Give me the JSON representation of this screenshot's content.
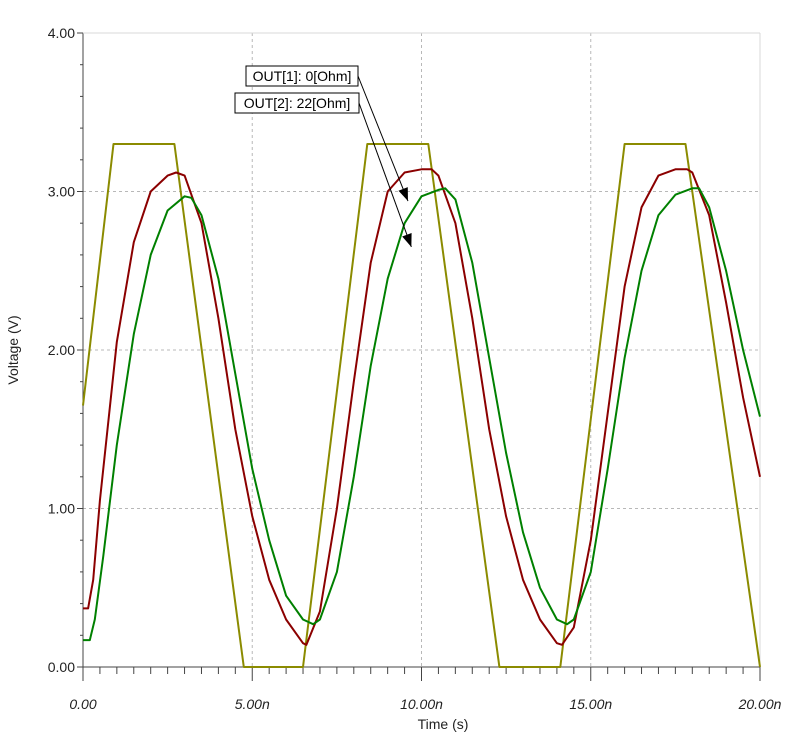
{
  "chart_data": {
    "type": "line",
    "xlabel": "Time (s)",
    "ylabel": "Voltage (V)",
    "xlim": [
      0,
      20
    ],
    "ylim": [
      0,
      4
    ],
    "grid": true,
    "x_ticks": [
      0,
      5,
      10,
      15,
      20
    ],
    "x_tick_labels": [
      "0.00",
      "5.00n",
      "10.00n",
      "15.00n",
      "20.00n"
    ],
    "y_ticks": [
      0,
      1,
      2,
      3,
      4
    ],
    "y_tick_labels": [
      "0.00",
      "1.00",
      "2.00",
      "3.00",
      "4.00"
    ],
    "series": [
      {
        "color": "#8b8b00",
        "x": [
          0,
          0.9,
          2.7,
          4.75,
          6.5,
          8.4,
          10.2,
          12.3,
          14.1,
          16.0,
          17.8,
          20.0
        ],
        "values": [
          1.65,
          3.3,
          3.3,
          0,
          0,
          3.3,
          3.3,
          0,
          0,
          3.3,
          3.3,
          0
        ]
      },
      {
        "color": "#8b0000",
        "x": [
          0,
          0.15,
          0.3,
          0.5,
          1.0,
          1.5,
          2.0,
          2.5,
          2.75,
          3.0,
          3.5,
          4.0,
          4.5,
          5.0,
          5.5,
          6.0,
          6.5,
          6.6,
          7.0,
          7.5,
          8.0,
          8.5,
          9.0,
          9.5,
          10.0,
          10.3,
          10.5,
          11.0,
          11.5,
          12.0,
          12.5,
          13.0,
          13.5,
          14.0,
          14.15,
          14.5,
          15.0,
          15.5,
          16.0,
          16.5,
          17.0,
          17.5,
          17.85,
          18.0,
          18.5,
          19.0,
          19.5,
          20.0
        ],
        "values": [
          0.37,
          0.37,
          0.55,
          1.05,
          2.05,
          2.68,
          3.0,
          3.1,
          3.12,
          3.1,
          2.8,
          2.2,
          1.5,
          0.95,
          0.55,
          0.3,
          0.15,
          0.14,
          0.35,
          1.0,
          1.8,
          2.55,
          3.0,
          3.12,
          3.14,
          3.14,
          3.1,
          2.8,
          2.2,
          1.5,
          0.95,
          0.55,
          0.3,
          0.15,
          0.14,
          0.25,
          0.8,
          1.6,
          2.4,
          2.9,
          3.1,
          3.14,
          3.14,
          3.12,
          2.85,
          2.3,
          1.7,
          1.2
        ]
      },
      {
        "color": "#008000",
        "x": [
          0,
          0.2,
          0.35,
          0.6,
          1.0,
          1.5,
          2.0,
          2.5,
          3.0,
          3.2,
          3.5,
          4.0,
          4.5,
          5.0,
          5.5,
          6.0,
          6.5,
          6.8,
          7.0,
          7.5,
          8.0,
          8.5,
          9.0,
          9.5,
          10.0,
          10.5,
          10.7,
          11.0,
          11.5,
          12.0,
          12.5,
          13.0,
          13.5,
          14.0,
          14.3,
          14.5,
          15.0,
          15.5,
          16.0,
          16.5,
          17.0,
          17.5,
          18.0,
          18.2,
          18.5,
          19.0,
          19.5,
          20.0
        ],
        "values": [
          0.17,
          0.17,
          0.3,
          0.7,
          1.4,
          2.1,
          2.6,
          2.88,
          2.97,
          2.96,
          2.85,
          2.45,
          1.85,
          1.25,
          0.8,
          0.45,
          0.3,
          0.27,
          0.3,
          0.6,
          1.2,
          1.9,
          2.45,
          2.8,
          2.97,
          3.01,
          3.02,
          2.95,
          2.55,
          1.95,
          1.35,
          0.85,
          0.5,
          0.3,
          0.27,
          0.3,
          0.6,
          1.25,
          1.95,
          2.5,
          2.85,
          2.98,
          3.02,
          3.02,
          2.9,
          2.5,
          2.0,
          1.58
        ]
      }
    ],
    "annotations": [
      {
        "text": "OUT[1]: 0[Ohm]",
        "arrow_to": {
          "x": 9.6,
          "y": 2.94
        }
      },
      {
        "text": "OUT[2]: 22[Ohm]",
        "arrow_to": {
          "x": 9.7,
          "y": 2.65
        }
      }
    ]
  }
}
